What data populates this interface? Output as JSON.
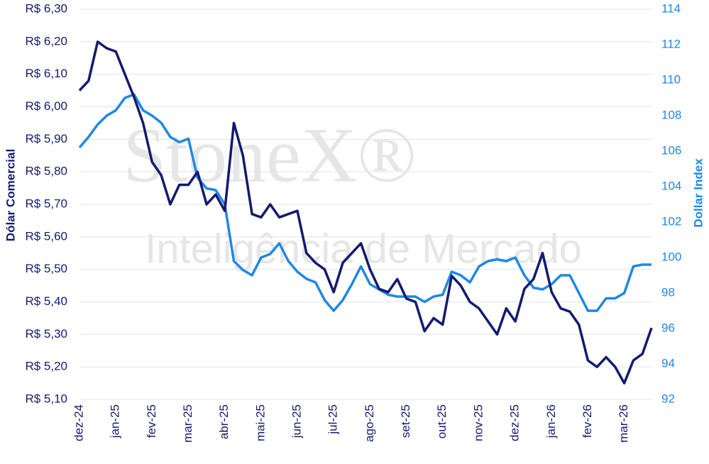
{
  "chart_data": {
    "type": "line",
    "watermark": "StoneX®",
    "watermark_subtitle": "Inteligência de Mercado",
    "ylabel": "Dólar Comercial",
    "y2label": "Dollar Index",
    "categories": [
      "dez-24",
      null,
      null,
      null,
      "jan-25",
      null,
      null,
      null,
      "fev-25",
      null,
      null,
      null,
      "mar-25",
      null,
      null,
      null,
      "abr-25",
      null,
      null,
      null,
      "mai-25",
      null,
      null,
      null,
      "jun-25",
      null,
      null,
      null,
      "jul-25",
      null,
      null,
      null,
      "ago-25",
      null,
      null,
      null,
      "set-25",
      null,
      null,
      null,
      "out-25",
      null,
      null,
      null,
      "nov-25",
      null,
      null,
      null,
      "dez-25",
      null,
      null,
      null,
      "jan-26",
      null,
      null,
      null,
      "fev-26",
      null,
      null,
      null,
      "mar-26",
      null,
      null,
      null
    ],
    "series": [
      {
        "name": "Dólar Comercial",
        "color": "#141a6e",
        "axis": "y",
        "values": [
          6.05,
          6.08,
          6.2,
          6.18,
          6.17,
          6.1,
          6.03,
          5.95,
          5.83,
          5.79,
          5.7,
          5.76,
          5.76,
          5.8,
          5.7,
          5.73,
          5.68,
          5.95,
          5.85,
          5.67,
          5.66,
          5.7,
          5.66,
          5.67,
          5.68,
          5.55,
          5.52,
          5.5,
          5.43,
          5.52,
          5.55,
          5.58,
          5.5,
          5.44,
          5.43,
          5.47,
          5.41,
          5.4,
          5.31,
          5.35,
          5.33,
          5.48,
          5.45,
          5.4,
          5.38,
          5.34,
          5.3,
          5.38,
          5.34,
          5.44,
          5.47,
          5.55,
          5.43,
          5.38,
          5.37,
          5.33,
          5.22,
          5.2,
          5.23,
          5.2,
          5.15,
          5.22,
          5.24,
          5.32
        ]
      },
      {
        "name": "Dollar Index",
        "color": "#1e88e5",
        "axis": "y2",
        "values": [
          106.2,
          106.8,
          107.5,
          108.0,
          108.3,
          109.0,
          109.2,
          108.3,
          108.0,
          107.6,
          106.8,
          106.5,
          106.7,
          104.5,
          103.9,
          103.8,
          103.0,
          99.8,
          99.3,
          99.0,
          100.0,
          100.2,
          100.8,
          99.8,
          99.2,
          98.8,
          98.6,
          97.6,
          97.0,
          97.6,
          98.5,
          99.5,
          98.5,
          98.2,
          97.9,
          97.8,
          97.8,
          97.8,
          97.5,
          97.8,
          97.9,
          99.2,
          99.0,
          98.6,
          99.5,
          99.8,
          99.9,
          99.8,
          100.0,
          99.0,
          98.3,
          98.2,
          98.5,
          99.0,
          99.0,
          98.0,
          97.0,
          97.0,
          97.7,
          97.7,
          98.0,
          99.5,
          99.6,
          99.6
        ]
      }
    ],
    "ylim": [
      5.1,
      6.3
    ],
    "yticks": [
      {
        "value": 5.1,
        "label": "R$ 5,10"
      },
      {
        "value": 5.2,
        "label": "R$ 5,20"
      },
      {
        "value": 5.3,
        "label": "R$ 5,30"
      },
      {
        "value": 5.4,
        "label": "R$ 5,40"
      },
      {
        "value": 5.5,
        "label": "R$ 5,50"
      },
      {
        "value": 5.6,
        "label": "R$ 5,60"
      },
      {
        "value": 5.7,
        "label": "R$ 5,70"
      },
      {
        "value": 5.8,
        "label": "R$ 5,80"
      },
      {
        "value": 5.9,
        "label": "R$ 5,90"
      },
      {
        "value": 6.0,
        "label": "R$ 6,00"
      },
      {
        "value": 6.1,
        "label": "R$ 6,10"
      },
      {
        "value": 6.2,
        "label": "R$ 6,20"
      },
      {
        "value": 6.3,
        "label": "R$ 6,30"
      }
    ],
    "y2lim": [
      92,
      114
    ],
    "y2ticks": [
      92,
      94,
      96,
      98,
      100,
      102,
      104,
      106,
      108,
      110,
      112,
      114
    ],
    "grid": true
  }
}
